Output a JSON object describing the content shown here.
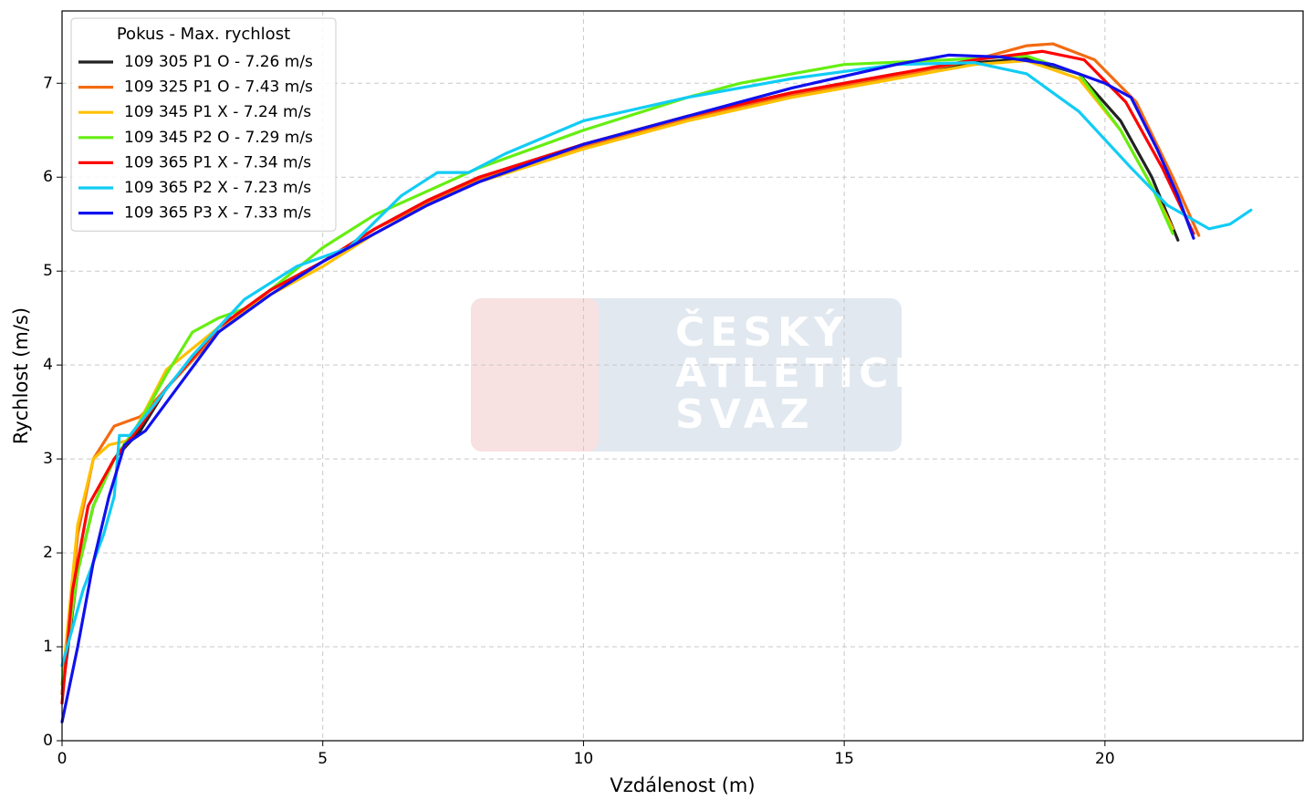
{
  "chart_data": {
    "type": "line",
    "xlabel": "Vzdálenost (m)",
    "ylabel": "Rychlost (m/s)",
    "legend_title": "Pokus - Max. rychlost",
    "legend": "upper left",
    "grid": true,
    "watermark": [
      "ČESKÝ",
      "ATLETICKÝ",
      "SVAZ"
    ],
    "xlim": [
      0,
      23.8
    ],
    "ylim": [
      0,
      7.77
    ],
    "xticks": [
      0,
      5,
      10,
      15,
      20
    ],
    "yticks": [
      0,
      1,
      2,
      3,
      4,
      5,
      6,
      7
    ],
    "series": [
      {
        "name": "109 305 P1 O - 7.26 m/s",
        "color": "#222222",
        "x": [
          0,
          0.3,
          0.6,
          1,
          1.5,
          2,
          3,
          4,
          5,
          6,
          7,
          8,
          10,
          12,
          14,
          16,
          17.5,
          18.5,
          19.5,
          20.3,
          20.9,
          21.4
        ],
        "values": [
          0.5,
          1.8,
          2.5,
          3.0,
          3.3,
          3.75,
          4.4,
          4.8,
          5.1,
          5.45,
          5.75,
          6.0,
          6.35,
          6.65,
          6.9,
          7.1,
          7.22,
          7.26,
          7.1,
          6.6,
          6.0,
          5.33
        ]
      },
      {
        "name": "109 325 P1 O - 7.43 m/s",
        "color": "#f36b12",
        "x": [
          0,
          0.3,
          0.6,
          1,
          1.5,
          2,
          3,
          4,
          5,
          6,
          7,
          8,
          10,
          12,
          14,
          16,
          17.5,
          18.5,
          19,
          19.8,
          20.6,
          21.3,
          21.8
        ],
        "values": [
          0.5,
          2.2,
          3.0,
          3.35,
          3.45,
          3.75,
          4.35,
          4.8,
          5.1,
          5.45,
          5.72,
          5.98,
          6.32,
          6.62,
          6.87,
          7.07,
          7.25,
          7.4,
          7.42,
          7.25,
          6.8,
          6.0,
          5.38
        ]
      },
      {
        "name": "109 345 P1 X - 7.24 m/s",
        "color": "#ffc000",
        "x": [
          0,
          0.3,
          0.6,
          0.9,
          1.3,
          2,
          3,
          4,
          5,
          6,
          7,
          8,
          10,
          12,
          14,
          16,
          17.5,
          18.5,
          19.5,
          20.3,
          20.9,
          21.3
        ],
        "values": [
          0.6,
          2.3,
          3.0,
          3.15,
          3.2,
          3.95,
          4.4,
          4.75,
          5.05,
          5.4,
          5.7,
          5.95,
          6.3,
          6.6,
          6.85,
          7.05,
          7.2,
          7.24,
          7.05,
          6.5,
          5.9,
          5.45
        ]
      },
      {
        "name": "109 345 P2 O - 7.29 m/s",
        "color": "#66ee11",
        "x": [
          0,
          0.3,
          0.6,
          1,
          1.5,
          2,
          2.5,
          3,
          3.5,
          4,
          5,
          6,
          7,
          8,
          10,
          12,
          13,
          15,
          17,
          18.5,
          19.5,
          20.3,
          20.9,
          21.3
        ],
        "values": [
          0.6,
          1.8,
          2.5,
          3.0,
          3.4,
          3.9,
          4.35,
          4.5,
          4.6,
          4.8,
          5.25,
          5.6,
          5.85,
          6.1,
          6.5,
          6.85,
          7.0,
          7.2,
          7.25,
          7.29,
          7.1,
          6.5,
          5.9,
          5.4
        ]
      },
      {
        "name": "109 365 P1 X - 7.34 m/s",
        "color": "#ff0000",
        "x": [
          0,
          0.2,
          0.5,
          1,
          1.5,
          2,
          3,
          4,
          5,
          6,
          7,
          8,
          10,
          12,
          14,
          16,
          17.5,
          18.8,
          19.6,
          20.4,
          21.1,
          21.7
        ],
        "values": [
          0.4,
          1.6,
          2.5,
          3.0,
          3.35,
          3.75,
          4.4,
          4.8,
          5.1,
          5.45,
          5.75,
          6.0,
          6.35,
          6.65,
          6.9,
          7.1,
          7.25,
          7.34,
          7.25,
          6.8,
          6.1,
          5.4
        ]
      },
      {
        "name": "109 365 P2 X - 7.23 m/s",
        "color": "#11ccf5",
        "x": [
          0,
          0.4,
          0.8,
          1.0,
          1.1,
          1.3,
          1.8,
          2.5,
          3.5,
          4.5,
          5.5,
          6.5,
          7.2,
          7.8,
          8.5,
          10,
          12,
          14,
          16,
          17.5,
          18.5,
          19.5,
          20.5,
          21.2,
          22,
          22.4,
          22.8
        ],
        "values": [
          0.8,
          1.6,
          2.2,
          2.6,
          3.25,
          3.25,
          3.6,
          4.1,
          4.7,
          5.05,
          5.25,
          5.8,
          6.05,
          6.05,
          6.25,
          6.6,
          6.85,
          7.05,
          7.2,
          7.22,
          7.1,
          6.7,
          6.1,
          5.7,
          5.45,
          5.5,
          5.65
        ]
      },
      {
        "name": "109 365 P3 X - 7.33 m/s",
        "color": "#1010ee",
        "x": [
          0,
          0.3,
          0.6,
          0.9,
          1.2,
          1.6,
          2,
          3,
          4,
          5,
          6,
          7,
          8,
          10,
          12,
          14,
          16,
          17,
          18,
          19,
          20,
          20.5,
          21,
          21.4,
          21.7
        ],
        "values": [
          0.2,
          1.0,
          1.9,
          2.6,
          3.15,
          3.3,
          3.6,
          4.35,
          4.75,
          5.1,
          5.4,
          5.7,
          5.95,
          6.35,
          6.65,
          6.95,
          7.2,
          7.3,
          7.28,
          7.2,
          7.0,
          6.85,
          6.3,
          5.8,
          5.35
        ]
      }
    ]
  }
}
